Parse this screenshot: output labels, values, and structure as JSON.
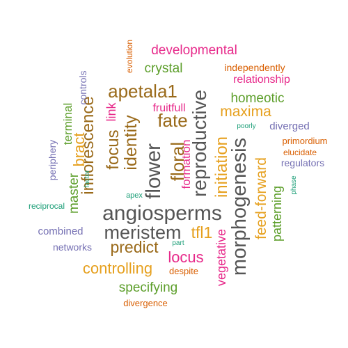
{
  "palette": {
    "gray": "#555555",
    "brown": "#9A6A1A",
    "gold": "#E6A01E",
    "magenta": "#E7298A",
    "green": "#5C9E2A",
    "teal": "#1B9E77",
    "purple": "#7570B3",
    "orange": "#D95F02"
  },
  "words": [
    {
      "text": "angiosperms",
      "color": "gray"
    },
    {
      "text": "meristem",
      "color": "gray"
    },
    {
      "text": "morphogenesis",
      "color": "gray"
    },
    {
      "text": "reproductive",
      "color": "gray"
    },
    {
      "text": "flower",
      "color": "gray"
    },
    {
      "text": "floral",
      "color": "brown"
    },
    {
      "text": "identity",
      "color": "brown"
    },
    {
      "text": "inflorescence",
      "color": "brown"
    },
    {
      "text": "apetala1",
      "color": "brown"
    },
    {
      "text": "fate",
      "color": "brown"
    },
    {
      "text": "focus",
      "color": "brown"
    },
    {
      "text": "bract",
      "color": "gold"
    },
    {
      "text": "initiation",
      "color": "gold"
    },
    {
      "text": "feed-forward",
      "color": "gold"
    },
    {
      "text": "maxima",
      "color": "gold"
    },
    {
      "text": "tfl1",
      "color": "gold"
    },
    {
      "text": "locus",
      "color": "magenta"
    },
    {
      "text": "predict",
      "color": "brown"
    },
    {
      "text": "controlling",
      "color": "gold"
    },
    {
      "text": "specifying",
      "color": "green"
    },
    {
      "text": "developmental",
      "color": "magenta"
    },
    {
      "text": "crystal",
      "color": "green"
    },
    {
      "text": "homeotic",
      "color": "green"
    },
    {
      "text": "relationship",
      "color": "magenta"
    },
    {
      "text": "vegetative",
      "color": "magenta"
    },
    {
      "text": "patterning",
      "color": "green"
    },
    {
      "text": "master",
      "color": "green"
    },
    {
      "text": "terminal",
      "color": "green"
    },
    {
      "text": "link",
      "color": "magenta"
    },
    {
      "text": "fruitfull",
      "color": "magenta"
    },
    {
      "text": "formation",
      "color": "magenta"
    },
    {
      "text": "independently",
      "color": "orange"
    },
    {
      "text": "diverged",
      "color": "purple"
    },
    {
      "text": "regulators",
      "color": "purple"
    },
    {
      "text": "combined",
      "color": "purple"
    },
    {
      "text": "networks",
      "color": "purple"
    },
    {
      "text": "periphery",
      "color": "purple"
    },
    {
      "text": "controls",
      "color": "purple"
    },
    {
      "text": "despite",
      "color": "orange"
    },
    {
      "text": "divergence",
      "color": "orange"
    },
    {
      "text": "evolution",
      "color": "orange"
    },
    {
      "text": "primordium",
      "color": "orange"
    },
    {
      "text": "elucidate",
      "color": "orange"
    },
    {
      "text": "reciprocal",
      "color": "teal"
    },
    {
      "text": "apex",
      "color": "teal"
    },
    {
      "text": "factor",
      "color": "teal"
    },
    {
      "text": "poorly",
      "color": "teal"
    },
    {
      "text": "phase",
      "color": "teal"
    },
    {
      "text": "part",
      "color": "teal"
    }
  ]
}
